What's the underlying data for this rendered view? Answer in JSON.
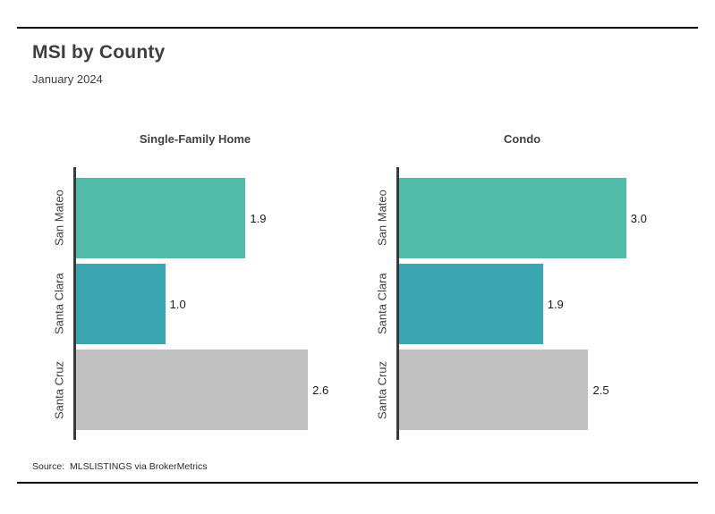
{
  "page": {
    "title": "MSI by County",
    "subtitle": "January 2024",
    "source": "Source:  MLSLISTINGS via BrokerMetrics"
  },
  "colors": {
    "bar_teal_light": "#52BCAB",
    "bar_teal_dark": "#3AA6B2",
    "bar_gray": "#C1C1C1",
    "axis_spine": "#3A3A3A",
    "rule_black": "#000000",
    "text_dark": "#3E3E3E",
    "value_text": "#1A1A1A"
  },
  "chart_data": [
    {
      "type": "bar",
      "orientation": "horizontal",
      "title": "Single-Family Home",
      "categories": [
        "San Mateo",
        "Santa Clara",
        "Santa Cruz"
      ],
      "values": [
        1.9,
        1.0,
        2.6
      ],
      "value_labels": [
        "1.9",
        "1.0",
        "2.6"
      ],
      "bar_colors": [
        "#52BCAB",
        "#3AA6B2",
        "#C1C1C1"
      ],
      "xlabel": "",
      "ylabel": "",
      "xlim": [
        0,
        3.16
      ],
      "grid": false,
      "legend": false
    },
    {
      "type": "bar",
      "orientation": "horizontal",
      "title": "Condo",
      "categories": [
        "San Mateo",
        "Santa Clara",
        "Santa Cruz"
      ],
      "values": [
        3.0,
        1.9,
        2.5
      ],
      "value_labels": [
        "3.0",
        "1.9",
        "2.5"
      ],
      "bar_colors": [
        "#52BCAB",
        "#3AA6B2",
        "#C1C1C1"
      ],
      "xlabel": "",
      "ylabel": "",
      "xlim": [
        0,
        3.83
      ],
      "grid": false,
      "legend": false
    }
  ]
}
